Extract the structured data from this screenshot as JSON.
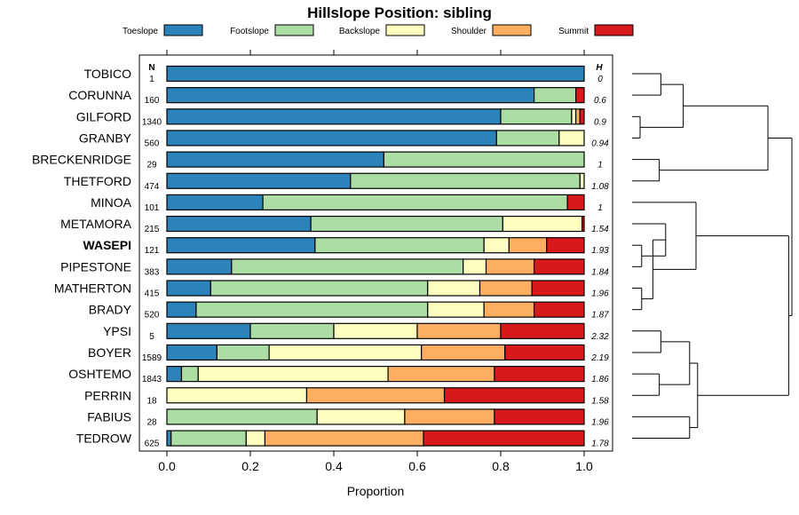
{
  "chart_data": {
    "type": "bar",
    "orientation": "horizontal",
    "stacked": true,
    "title": "Hillslope Position: sibling",
    "xlabel": "Proportion",
    "ylabel": "",
    "xlim": [
      0,
      1
    ],
    "x_ticks": [
      "0.0",
      "0.2",
      "0.4",
      "0.6",
      "0.8",
      "1.0"
    ],
    "x_tick_values": [
      0,
      0.2,
      0.4,
      0.6,
      0.8,
      1.0
    ],
    "n_header": "N",
    "h_header": "H",
    "legend_position": "top",
    "dendrogram": "right",
    "series": [
      {
        "name": "Toeslope",
        "color": "#2b83ba"
      },
      {
        "name": "Footslope",
        "color": "#abdda4"
      },
      {
        "name": "Backslope",
        "color": "#ffffbf"
      },
      {
        "name": "Shoulder",
        "color": "#fdae61"
      },
      {
        "name": "Summit",
        "color": "#d7191c"
      }
    ],
    "rows": [
      {
        "name": "TOBICO",
        "n": "1",
        "h": "0",
        "bold": false,
        "values": [
          1.0,
          0.0,
          0.0,
          0.0,
          0.0
        ]
      },
      {
        "name": "CORUNNA",
        "n": "160",
        "h": "0.6",
        "bold": false,
        "values": [
          0.88,
          0.1,
          0.0,
          0.0,
          0.02
        ]
      },
      {
        "name": "GILFORD",
        "n": "1340",
        "h": "0.9",
        "bold": false,
        "values": [
          0.8,
          0.17,
          0.01,
          0.01,
          0.01
        ]
      },
      {
        "name": "GRANBY",
        "n": "560",
        "h": "0.94",
        "bold": false,
        "values": [
          0.79,
          0.15,
          0.06,
          0.0,
          0.0
        ]
      },
      {
        "name": "BRECKENRIDGE",
        "n": "29",
        "h": "1",
        "bold": false,
        "values": [
          0.52,
          0.48,
          0.0,
          0.0,
          0.0
        ]
      },
      {
        "name": "THETFORD",
        "n": "474",
        "h": "1.08",
        "bold": false,
        "values": [
          0.44,
          0.55,
          0.01,
          0.0,
          0.0
        ]
      },
      {
        "name": "MINOA",
        "n": "101",
        "h": "1",
        "bold": false,
        "values": [
          0.23,
          0.73,
          0.0,
          0.0,
          0.04
        ]
      },
      {
        "name": "METAMORA",
        "n": "215",
        "h": "1.54",
        "bold": false,
        "values": [
          0.345,
          0.46,
          0.19,
          0.0,
          0.005
        ]
      },
      {
        "name": "WASEPI",
        "n": "121",
        "h": "1.93",
        "bold": true,
        "values": [
          0.355,
          0.405,
          0.06,
          0.09,
          0.09
        ]
      },
      {
        "name": "PIPESTONE",
        "n": "383",
        "h": "1.84",
        "bold": false,
        "values": [
          0.155,
          0.555,
          0.055,
          0.115,
          0.12
        ]
      },
      {
        "name": "MATHERTON",
        "n": "415",
        "h": "1.96",
        "bold": false,
        "values": [
          0.105,
          0.52,
          0.125,
          0.125,
          0.125
        ]
      },
      {
        "name": "BRADY",
        "n": "520",
        "h": "1.87",
        "bold": false,
        "values": [
          0.07,
          0.555,
          0.135,
          0.12,
          0.12
        ]
      },
      {
        "name": "YPSI",
        "n": "5",
        "h": "2.32",
        "bold": false,
        "values": [
          0.2,
          0.2,
          0.2,
          0.2,
          0.2
        ]
      },
      {
        "name": "BOYER",
        "n": "1589",
        "h": "2.19",
        "bold": false,
        "values": [
          0.12,
          0.125,
          0.365,
          0.2,
          0.19
        ]
      },
      {
        "name": "OSHTEMO",
        "n": "1843",
        "h": "1.86",
        "bold": false,
        "values": [
          0.035,
          0.04,
          0.455,
          0.255,
          0.215
        ]
      },
      {
        "name": "PERRIN",
        "n": "18",
        "h": "1.58",
        "bold": false,
        "values": [
          0.0,
          0.0,
          0.335,
          0.33,
          0.335
        ]
      },
      {
        "name": "FABIUS",
        "n": "28",
        "h": "1.96",
        "bold": false,
        "values": [
          0.0,
          0.36,
          0.21,
          0.215,
          0.215
        ]
      },
      {
        "name": "TEDROW",
        "n": "625",
        "h": "1.78",
        "bold": false,
        "values": [
          0.01,
          0.18,
          0.045,
          0.38,
          0.385
        ]
      }
    ],
    "clusters": [
      {
        "a": 0,
        "b": 1,
        "height": 0.18
      },
      {
        "a": 2,
        "b": 3,
        "height": 0.05
      },
      {
        "a": "c1",
        "b": "c0",
        "height": 0.32
      },
      {
        "a": 4,
        "b": 5,
        "height": 0.17
      },
      {
        "a": "c2",
        "b": "c3",
        "height": 0.85
      },
      {
        "a": 8,
        "b": 9,
        "height": 0.06
      },
      {
        "a": "c5",
        "b": 7,
        "height": 0.21
      },
      {
        "a": 10,
        "b": 11,
        "height": 0.06
      },
      {
        "a": "c6",
        "b": "c7",
        "height": 0.13
      },
      {
        "a": 6,
        "b": "c8",
        "height": 0.4
      },
      {
        "a": 12,
        "b": 13,
        "height": 0.18
      },
      {
        "a": 14,
        "b": 15,
        "height": 0.17
      },
      {
        "a": "c10",
        "b": "c11",
        "height": 0.36
      },
      {
        "a": 16,
        "b": 17,
        "height": 0.36
      },
      {
        "a": "c12",
        "b": "c13",
        "height": 0.41
      },
      {
        "a": "c9",
        "b": "c14",
        "height": 0.98
      },
      {
        "a": "c4",
        "b": "c15",
        "height": 1.0
      }
    ]
  }
}
